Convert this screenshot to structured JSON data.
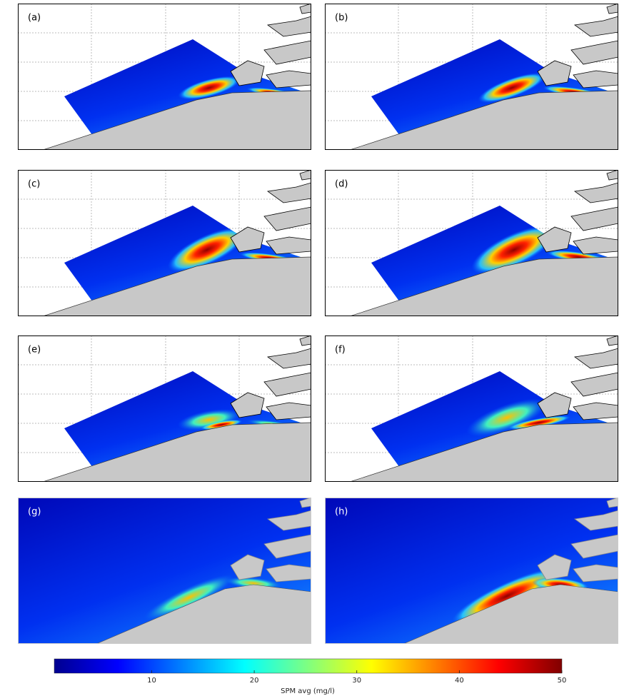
{
  "panels": [
    {
      "label": "(a)"
    },
    {
      "label": "(b)"
    },
    {
      "label": "(c)"
    },
    {
      "label": "(d)"
    },
    {
      "label": "(e)"
    },
    {
      "label": "(f)"
    },
    {
      "label": "(g)"
    },
    {
      "label": "(h)"
    }
  ],
  "colorbar": {
    "label": "SPM avg (mg/l)",
    "lim": [
      0.5,
      50
    ],
    "ticks": [
      10,
      20,
      30,
      40,
      50
    ]
  }
}
